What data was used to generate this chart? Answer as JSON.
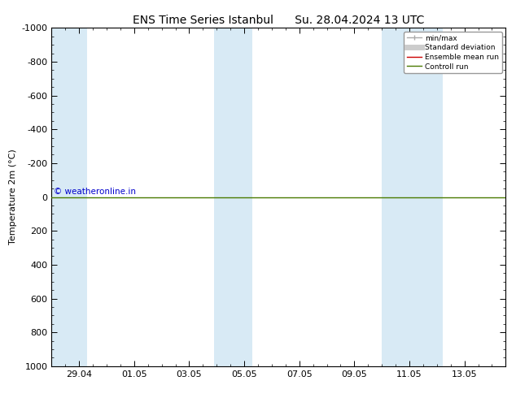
{
  "title": "ENS Time Series Istanbul      Su. 28.04.2024 13 UTC",
  "ylabel": "Temperature 2m (°C)",
  "ylim_bottom": 1000,
  "ylim_top": -1000,
  "yticks": [
    -1000,
    -800,
    -600,
    -400,
    -200,
    0,
    200,
    400,
    600,
    800,
    1000
  ],
  "xtick_labels": [
    "29.04",
    "01.05",
    "03.05",
    "05.05",
    "07.05",
    "09.05",
    "11.05",
    "13.05"
  ],
  "xtick_positions": [
    0,
    2,
    4,
    6,
    8,
    10,
    12,
    14
  ],
  "blue_bands": [
    {
      "start": -1.0,
      "end": 0.3
    },
    {
      "start": 4.9,
      "end": 6.3
    },
    {
      "start": 11.0,
      "end": 13.2
    }
  ],
  "green_line_y": 0,
  "green_line_color": "#4a7a00",
  "band_color": "#d8eaf5",
  "background_color": "#ffffff",
  "copyright_text": "© weatheronline.in",
  "copyright_color": "#0000cc",
  "legend_items": [
    {
      "label": "min/max",
      "color": "#aaaaaa",
      "lw": 1.0
    },
    {
      "label": "Standard deviation",
      "color": "#cccccc",
      "lw": 5
    },
    {
      "label": "Ensemble mean run",
      "color": "#cc0000",
      "lw": 1.0
    },
    {
      "label": "Controll run",
      "color": "#4a7a00",
      "lw": 1.0
    }
  ],
  "title_fontsize": 10,
  "axis_fontsize": 8,
  "tick_fontsize": 8,
  "xlim_min": -1.0,
  "xlim_max": 15.5
}
